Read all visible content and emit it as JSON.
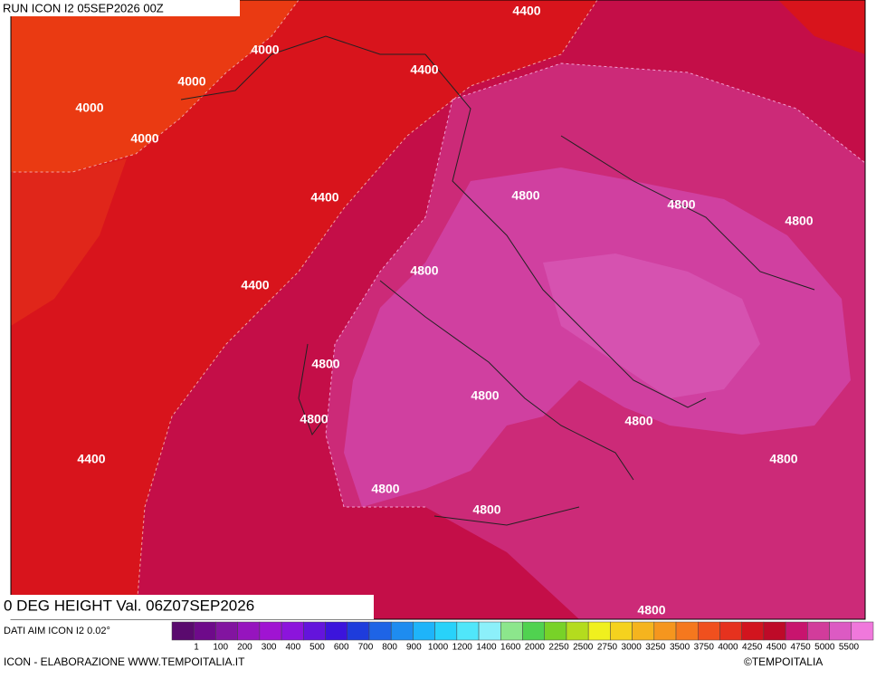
{
  "header": {
    "run": "RUN ICON I2 05SEP2026 00Z"
  },
  "map": {
    "contour_labels": [
      4400,
      4000,
      4000,
      4400,
      4000,
      4000,
      4800,
      4400,
      4800,
      4800,
      4800,
      4400,
      4800,
      4800,
      4800,
      4800,
      4800,
      4400,
      4800,
      4800,
      4800
    ]
  },
  "footer": {
    "title": "0 DEG HEIGHT Val. 06Z07SEP2026",
    "source": "DATI AIM ICON I2 0.02°",
    "credit": "ICON - ELABORAZIONE WWW.TEMPOITALIA.IT",
    "copyright": "©TEMPOITALIA"
  },
  "legend": {
    "labels": [
      1,
      100,
      200,
      300,
      400,
      500,
      600,
      700,
      800,
      900,
      1000,
      1200,
      1400,
      1600,
      2000,
      2250,
      2500,
      2750,
      3000,
      3250,
      3500,
      3750,
      4000,
      4250,
      4500,
      4750,
      5000,
      5500
    ],
    "colors": [
      "#5a0a6e",
      "#6e0a8a",
      "#8214a0",
      "#9614be",
      "#a014d2",
      "#8c14dc",
      "#6414dc",
      "#3c14dc",
      "#1e3cdc",
      "#1e64e6",
      "#1e8cf0",
      "#1eb4fa",
      "#28d2fa",
      "#50e6fa",
      "#8cf0fa",
      "#8ce68c",
      "#50d250",
      "#78d228",
      "#b4dc1e",
      "#f0f01e",
      "#f5d21e",
      "#f5b41e",
      "#f5961e",
      "#f5781e",
      "#f0501e",
      "#e6321e",
      "#d2141e",
      "#be0a28",
      "#c8146e",
      "#d23c9b",
      "#dc5ac3",
      "#f078dc"
    ]
  }
}
